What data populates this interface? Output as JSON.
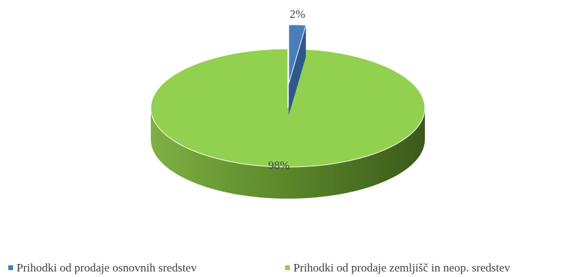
{
  "chart_data": {
    "type": "pie",
    "style": "3d",
    "categories": [
      "Prihodki od prodaje osnovnih sredstev",
      "Prihodki od prodaje zemljišč in neop. sredstev"
    ],
    "values": [
      2,
      98
    ],
    "data_labels": [
      "2%",
      "98%"
    ],
    "colors": [
      "#4a7ebb",
      "#92d050"
    ],
    "exploded_slice": 0,
    "legend_position": "bottom"
  }
}
